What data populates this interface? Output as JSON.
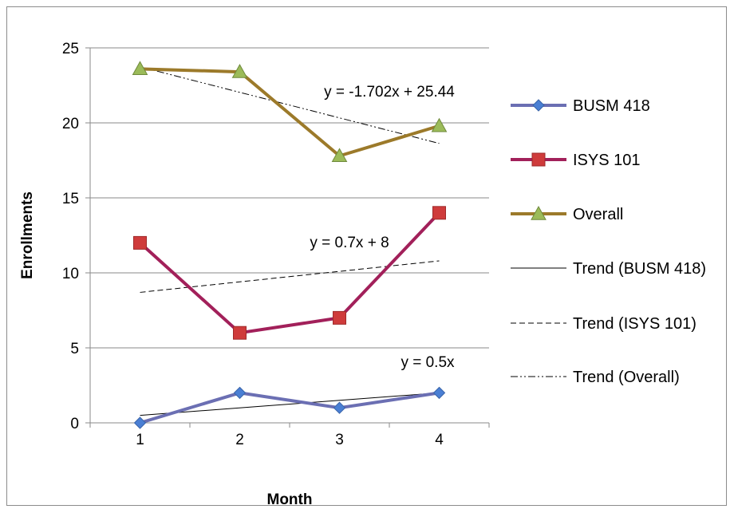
{
  "chart_data": {
    "type": "line",
    "title": "",
    "xlabel": "Month",
    "ylabel": "Enrollments",
    "x": [
      1,
      2,
      3,
      4
    ],
    "xlim": [
      0.5,
      4.5
    ],
    "ylim": [
      0,
      25
    ],
    "yticks": [
      0,
      5,
      10,
      15,
      20,
      25
    ],
    "xticks": [
      1,
      2,
      3,
      4
    ],
    "grid": "horizontal",
    "legend_position": "right",
    "series": [
      {
        "name": "BUSM 418",
        "values": [
          0,
          2,
          1,
          2
        ],
        "color": "#6b6fb3",
        "marker_color": "#4a7fd4",
        "marker": "diamond"
      },
      {
        "name": "ISYS 101",
        "values": [
          12,
          6,
          7,
          14
        ],
        "color": "#a2205a",
        "marker_color": "#cf3b3b",
        "marker": "square"
      },
      {
        "name": "Overall",
        "values": [
          23.6,
          23.4,
          17.8,
          19.8
        ],
        "color": "#9c7a2a",
        "marker_color": "#9bbb59",
        "marker": "triangle"
      }
    ],
    "trendlines": [
      {
        "name": "Trend (BUSM 418)",
        "series": "BUSM 418",
        "slope": 0.5,
        "intercept": 0,
        "equation": "y = 0.5x",
        "style": "solid"
      },
      {
        "name": "Trend (ISYS 101)",
        "series": "ISYS 101",
        "slope": 0.7,
        "intercept": 8,
        "equation": "y = 0.7x + 8",
        "style": "dashed"
      },
      {
        "name": "Trend (Overall)",
        "series": "Overall",
        "slope": -1.702,
        "intercept": 25.44,
        "equation": "y = -1.702x + 25.44",
        "style": "dashdotdot"
      }
    ]
  }
}
